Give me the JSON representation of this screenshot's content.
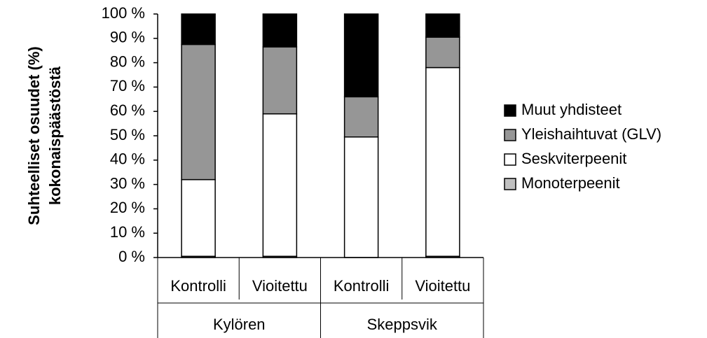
{
  "chart_data": {
    "type": "stacked_bar",
    "ylabel": [
      "Suhteelliset osuudet (%)",
      "kokonaispäästöstä"
    ],
    "categories": [
      "Kontrolli",
      "Vioitettu",
      "Kontrolli",
      "Vioitettu"
    ],
    "groups": [
      "Kylören",
      "Skeppsvik"
    ],
    "series": [
      {
        "name": "Monoterpeenit",
        "color": "#c0c0c0",
        "values": [
          0.5,
          0.5,
          0,
          0.5
        ]
      },
      {
        "name": "Seskviterpeenit",
        "color": "#ffffff",
        "values": [
          31.5,
          58.5,
          49.5,
          77.5
        ]
      },
      {
        "name": "Yleishaihtuvat (GLV)",
        "color": "#969696",
        "values": [
          55.5,
          27.5,
          16.5,
          12.5
        ]
      },
      {
        "name": "Muut yhdisteet",
        "color": "#000000",
        "values": [
          12.5,
          13.5,
          34,
          9.5
        ]
      }
    ],
    "ylim": [
      0,
      100
    ],
    "yticks": [
      {
        "value": 0,
        "label": "0 %"
      },
      {
        "value": 10,
        "label": "10 %"
      },
      {
        "value": 20,
        "label": "20 %"
      },
      {
        "value": 30,
        "label": "30 %"
      },
      {
        "value": 40,
        "label": "40 %"
      },
      {
        "value": 50,
        "label": "50 %"
      },
      {
        "value": 60,
        "label": "60 %"
      },
      {
        "value": 70,
        "label": "70 %"
      },
      {
        "value": 80,
        "label": "80 %"
      },
      {
        "value": 90,
        "label": "90 %"
      },
      {
        "value": 100,
        "label": "100 %"
      }
    ],
    "legend": "right"
  }
}
